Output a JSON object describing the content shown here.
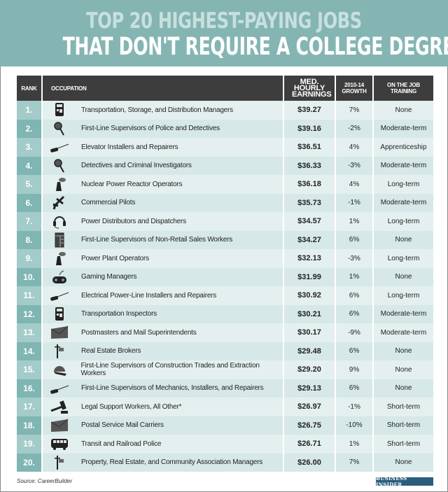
{
  "title": {
    "line1": "TOP 20 HIGHEST-PAYING JOBS",
    "line2": "THAT DON'T REQUIRE A COLLEGE DEGREE"
  },
  "colors": {
    "banner": "#84b5b3",
    "header_bg": "#3d3d3d",
    "rank_odd": "#a3cbc9",
    "rank_even": "#7fb5b2",
    "row_odd": "#e4f0ef",
    "row_even": "#d6e8e7",
    "logo_bg": "#2a5d7c"
  },
  "table": {
    "headers": {
      "rank": "RANK",
      "occupation": "OCCUPATION",
      "earnings": "MED. HOURLY EARNINGS",
      "growth": "2010-14 GROWTH",
      "training": "ON THE JOB TRAINING"
    },
    "rows": [
      {
        "rank": "1.",
        "icon": "bus-icon",
        "occupation": "Transportation, Storage, and Distribution Managers",
        "earnings": "$39.27",
        "growth": "7%",
        "training": "None"
      },
      {
        "rank": "2.",
        "icon": "magnifier-icon",
        "occupation": "First-Line Supervisors of Police and Detectives",
        "earnings": "$39.16",
        "growth": "-2%",
        "training": "Moderate-term"
      },
      {
        "rank": "3.",
        "icon": "screwdriver-icon",
        "occupation": "Elevator Installers and Repairers",
        "earnings": "$36.51",
        "growth": "4%",
        "training": "Apprenticeship"
      },
      {
        "rank": "4.",
        "icon": "magnifier-icon",
        "occupation": "Detectives and Criminal Investigators",
        "earnings": "$36.33",
        "growth": "-3%",
        "training": "Moderate-term"
      },
      {
        "rank": "5.",
        "icon": "cooling-tower-icon",
        "occupation": "Nuclear Power Reactor Operators",
        "earnings": "$36.18",
        "growth": "4%",
        "training": "Long-term"
      },
      {
        "rank": "6.",
        "icon": "airplane-icon",
        "occupation": "Commercial Pilots",
        "earnings": "$35.73",
        "growth": "-1%",
        "training": "Moderate-term"
      },
      {
        "rank": "7.",
        "icon": "headset-icon",
        "occupation": "Power Distributors and Dispatchers",
        "earnings": "$34.57",
        "growth": "1%",
        "training": "Long-term"
      },
      {
        "rank": "8.",
        "icon": "ledger-icon",
        "occupation": "First-Line Supervisors of Non-Retail Sales Workers",
        "earnings": "$34.27",
        "growth": "6%",
        "training": "None"
      },
      {
        "rank": "9.",
        "icon": "cooling-tower-icon",
        "occupation": "Power Plant Operators",
        "earnings": "$32.13",
        "growth": "-3%",
        "training": "Long-term"
      },
      {
        "rank": "10.",
        "icon": "gamepad-icon",
        "occupation": "Gaming Managers",
        "earnings": "$31.99",
        "growth": "1%",
        "training": "None"
      },
      {
        "rank": "11.",
        "icon": "screwdriver-icon",
        "occupation": "Electrical Power-Line Installers and Repairers",
        "earnings": "$30.92",
        "growth": "6%",
        "training": "Long-term"
      },
      {
        "rank": "12.",
        "icon": "bus-icon",
        "occupation": "Transportation Inspectors",
        "earnings": "$30.21",
        "growth": "6%",
        "training": "Moderate-term"
      },
      {
        "rank": "13.",
        "icon": "envelope-icon",
        "occupation": "Postmasters and Mail Superintendents",
        "earnings": "$30.17",
        "growth": "-9%",
        "training": "Moderate-term"
      },
      {
        "rank": "14.",
        "icon": "realty-sign-icon",
        "occupation": "Real Estate Brokers",
        "earnings": "$29.48",
        "growth": "6%",
        "training": "None"
      },
      {
        "rank": "15.",
        "icon": "hard-hat-icon",
        "occupation": "First-Line Supervisors of Construction Trades and Extraction Workers",
        "earnings": "$29.20",
        "growth": "9%",
        "training": "None"
      },
      {
        "rank": "16.",
        "icon": "screwdriver-icon",
        "occupation": "First-Line Supervisors of Mechanics, Installers, and Repairers",
        "earnings": "$29.13",
        "growth": "6%",
        "training": "None"
      },
      {
        "rank": "17.",
        "icon": "gavel-icon",
        "occupation": "Legal Support Workers, All Other*",
        "earnings": "$26.97",
        "growth": "-1%",
        "training": "Short-term"
      },
      {
        "rank": "18.",
        "icon": "envelope-icon",
        "occupation": "Postal Service Mail Carriers",
        "earnings": "$26.75",
        "growth": "-10%",
        "training": "Short-term"
      },
      {
        "rank": "19.",
        "icon": "train-car-icon",
        "occupation": "Transit and Railroad Police",
        "earnings": "$26.71",
        "growth": "1%",
        "training": "Short-term"
      },
      {
        "rank": "20.",
        "icon": "realty-sign-icon",
        "occupation": "Property, Real Estate, and Community Association Managers",
        "earnings": "$26.00",
        "growth": "7%",
        "training": "None"
      }
    ]
  },
  "footer": {
    "source": "Source: CareerBuilder",
    "logo": "BUSINESS INSIDER"
  }
}
